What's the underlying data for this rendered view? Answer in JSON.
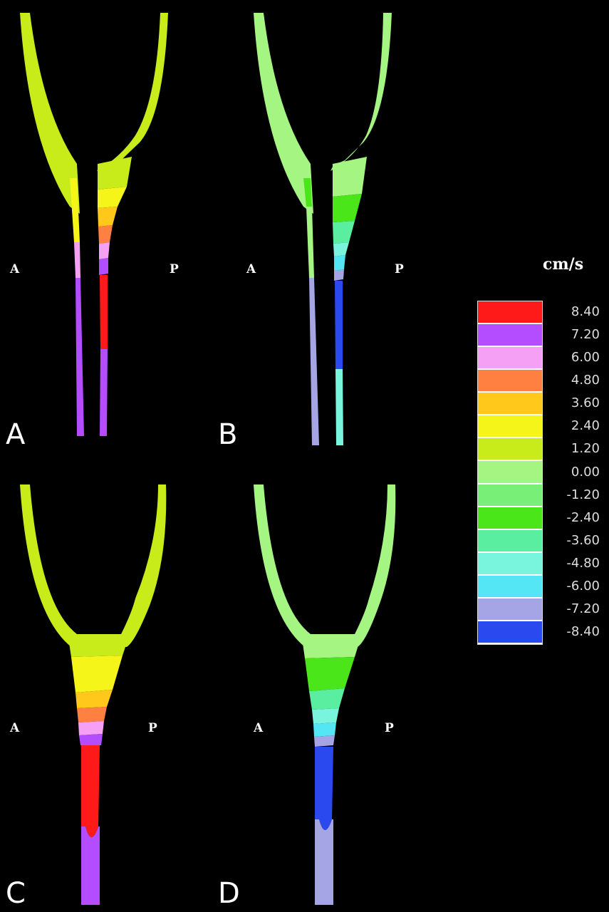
{
  "panels": [
    {
      "id": "A",
      "letter": "A",
      "left_label": "A",
      "right_label": "P",
      "shape": "split",
      "phase": "positive"
    },
    {
      "id": "B",
      "letter": "B",
      "left_label": "A",
      "right_label": "P",
      "shape": "split",
      "phase": "negative"
    },
    {
      "id": "C",
      "letter": "C",
      "left_label": "A",
      "right_label": "P",
      "shape": "single",
      "phase": "positive"
    },
    {
      "id": "D",
      "letter": "D",
      "left_label": "A",
      "right_label": "P",
      "shape": "single",
      "phase": "negative"
    }
  ],
  "legend": {
    "unit": "cm/s",
    "levels": [
      {
        "value": "8.40",
        "color": "#ff1a1a"
      },
      {
        "value": "7.20",
        "color": "#b44dff"
      },
      {
        "value": "6.00",
        "color": "#f5a0f5"
      },
      {
        "value": "4.80",
        "color": "#ff8040"
      },
      {
        "value": "3.60",
        "color": "#ffc81a"
      },
      {
        "value": "2.40",
        "color": "#f5f51a"
      },
      {
        "value": "1.20",
        "color": "#c8eb1a"
      },
      {
        "value": "0.00",
        "color": "#a5f582"
      },
      {
        "value": "-1.20",
        "color": "#78f078"
      },
      {
        "value": "-2.40",
        "color": "#4ae61a"
      },
      {
        "value": "-3.60",
        "color": "#5aeea0"
      },
      {
        "value": "-4.80",
        "color": "#78f5dc"
      },
      {
        "value": "-6.00",
        "color": "#55e6f5"
      },
      {
        "value": "-7.20",
        "color": "#a5a5e6"
      },
      {
        "value": "-8.40",
        "color": "#2a4af0"
      }
    ]
  }
}
